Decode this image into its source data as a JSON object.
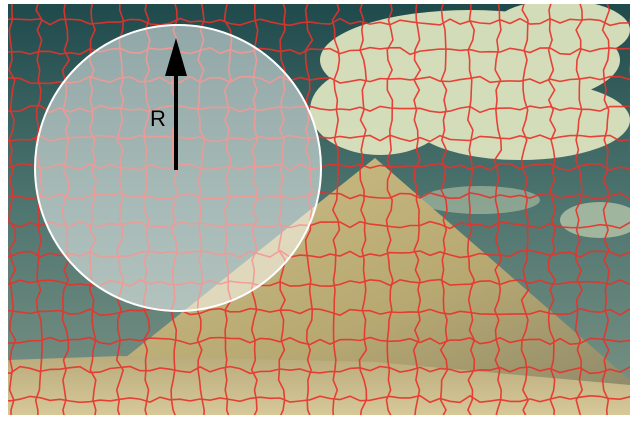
{
  "annotation": {
    "label": "R"
  }
}
